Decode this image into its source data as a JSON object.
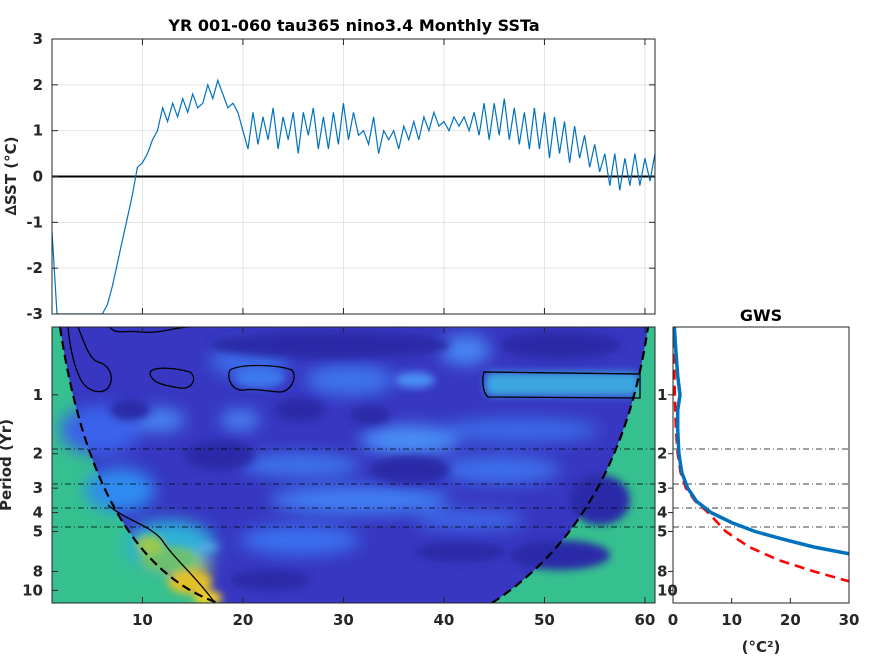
{
  "chart_data": [
    {
      "type": "line",
      "title": "YR 001-060 tau365 nino3.4 Monthly SSTa",
      "ylabel": "∆SST (°C)",
      "xlim": [
        1,
        61
      ],
      "ylim": [
        -3,
        3
      ],
      "xticks": [
        10,
        20,
        30,
        40,
        50,
        60
      ],
      "yticks": [
        -3,
        -2,
        -1,
        0,
        1,
        2,
        3
      ],
      "ytick_labels": [
        "-3",
        "-2",
        "-1",
        "0",
        "1",
        "2",
        "3"
      ],
      "grid": true,
      "series": [
        {
          "color": "#0072BD",
          "x": [
            1.0,
            1.5,
            2.0,
            2.5,
            3.0,
            3.5,
            4.0,
            4.5,
            5.0,
            5.5,
            6.0,
            6.5,
            7.0,
            7.5,
            8.0,
            8.5,
            9.0,
            9.5,
            10.0,
            10.5,
            11.0,
            11.5,
            12.0,
            12.5,
            13.0,
            13.5,
            14.0,
            14.5,
            15.0,
            15.5,
            16.0,
            16.5,
            17.0,
            17.5,
            18.0,
            18.5,
            19.0,
            19.5,
            20.0,
            20.5,
            21.0,
            21.5,
            22.0,
            22.5,
            23.0,
            23.5,
            24.0,
            24.5,
            25.0,
            25.5,
            26.0,
            26.5,
            27.0,
            27.5,
            28.0,
            28.5,
            29.0,
            29.5,
            30.0,
            30.5,
            31.0,
            31.5,
            32.0,
            32.5,
            33.0,
            33.5,
            34.0,
            34.5,
            35.0,
            35.5,
            36.0,
            36.5,
            37.0,
            37.5,
            38.0,
            38.5,
            39.0,
            39.5,
            40.0,
            40.5,
            41.0,
            41.5,
            42.0,
            42.5,
            43.0,
            43.5,
            44.0,
            44.5,
            45.0,
            45.5,
            46.0,
            46.5,
            47.0,
            47.5,
            48.0,
            48.5,
            49.0,
            49.5,
            50.0,
            50.5,
            51.0,
            51.5,
            52.0,
            52.5,
            53.0,
            53.5,
            54.0,
            54.5,
            55.0,
            55.5,
            56.0,
            56.5,
            57.0,
            57.5,
            58.0,
            58.5,
            59.0,
            59.5,
            60.0,
            60.5,
            61.0
          ],
          "y": [
            -1.2,
            -3.0,
            -3.0,
            -3.0,
            -3.0,
            -3.0,
            -3.0,
            -3.0,
            -3.0,
            -3.0,
            -3.0,
            -2.8,
            -2.4,
            -1.9,
            -1.4,
            -0.9,
            -0.4,
            0.2,
            0.3,
            0.5,
            0.8,
            1.0,
            1.5,
            1.2,
            1.6,
            1.3,
            1.7,
            1.4,
            1.8,
            1.5,
            1.6,
            2.0,
            1.7,
            2.1,
            1.8,
            1.5,
            1.6,
            1.4,
            1.0,
            0.6,
            1.4,
            0.7,
            1.3,
            0.8,
            1.5,
            0.6,
            1.3,
            0.8,
            1.4,
            0.5,
            1.4,
            0.9,
            1.5,
            0.6,
            1.3,
            0.6,
            1.4,
            0.7,
            1.6,
            0.8,
            1.4,
            0.9,
            1.0,
            0.7,
            1.3,
            0.5,
            1.0,
            0.8,
            1.0,
            0.6,
            1.1,
            0.8,
            1.2,
            0.8,
            1.3,
            1.0,
            1.4,
            1.1,
            1.2,
            1.0,
            1.3,
            1.1,
            1.3,
            1.0,
            1.4,
            0.9,
            1.6,
            0.8,
            1.6,
            0.9,
            1.7,
            0.8,
            1.5,
            0.7,
            1.4,
            0.6,
            1.5,
            0.6,
            1.4,
            0.4,
            1.3,
            0.5,
            1.2,
            0.3,
            1.1,
            0.4,
            0.9,
            0.2,
            0.7,
            0.1,
            0.5,
            -0.2,
            0.5,
            -0.3,
            0.4,
            -0.2,
            0.5,
            -0.2,
            0.4,
            -0.1,
            0.5
          ]
        },
        {
          "color": "#000000",
          "x": [
            1,
            61
          ],
          "y": [
            0,
            0
          ]
        }
      ]
    },
    {
      "type": "heatmap",
      "ylabel": "Period (Yr)",
      "xlim": [
        1,
        61
      ],
      "xticks": [
        10,
        20,
        30,
        40,
        50,
        60
      ],
      "yticks": [
        1,
        2,
        3,
        4,
        5,
        8,
        10
      ],
      "colormap": "parula",
      "reference_periods": [
        2,
        3,
        4,
        5
      ]
    },
    {
      "type": "line",
      "title": "GWS",
      "xlabel": "(°C²)",
      "xlim": [
        0,
        30
      ],
      "xticks": [
        0,
        10,
        20,
        30
      ],
      "yticks": [
        1,
        2,
        3,
        4,
        5,
        8,
        10
      ],
      "reference_periods": [
        2,
        3,
        4,
        5
      ],
      "series": [
        {
          "color": "#0072BD",
          "x": [
            0.0,
            0.5,
            0.8,
            1.2,
            0.8,
            0.8,
            1.0,
            1.5,
            2.5,
            4.0,
            6.5,
            10.0,
            14.0,
            19.0,
            24.0,
            30.0
          ],
          "y": [
            0.35,
            0.6,
            0.8,
            1.0,
            1.2,
            1.5,
            2.0,
            2.5,
            3.0,
            3.5,
            4.0,
            4.5,
            5.0,
            5.5,
            6.0,
            6.5
          ]
        },
        {
          "color": "#FF0000",
          "x": [
            0.0,
            0.3,
            0.5,
            0.8,
            1.3,
            2.2,
            3.8,
            6.0,
            9.0,
            13.0,
            18.0,
            24.0,
            30.0
          ],
          "y": [
            0.35,
            1.0,
            1.5,
            2.0,
            2.5,
            3.0,
            3.5,
            4.0,
            5.0,
            6.0,
            7.0,
            8.0,
            9.0
          ]
        }
      ]
    }
  ]
}
